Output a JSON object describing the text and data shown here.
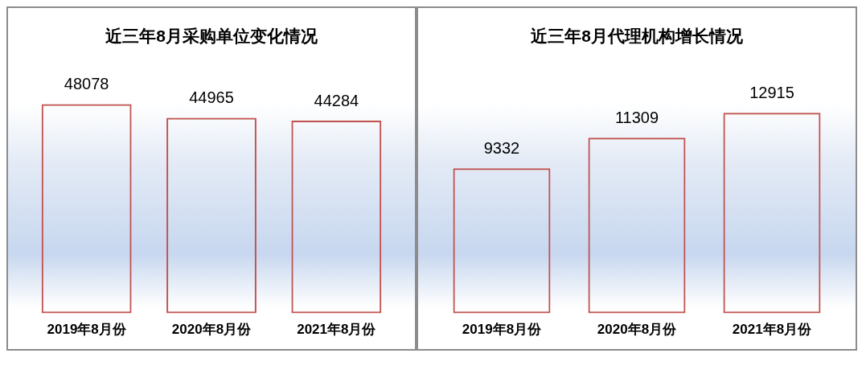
{
  "chart_data": [
    {
      "type": "bar",
      "title": "近三年8月采购单位变化情况",
      "categories": [
        "2019年8月份",
        "2020年8月份",
        "2021年8月份"
      ],
      "values": [
        48078,
        44965,
        44284
      ],
      "color": "#c0504d",
      "data_labels": true,
      "tick_labels": "x"
    },
    {
      "type": "bar",
      "title": "近三年8月代理机构增长情况",
      "categories": [
        "2019年8月份",
        "2020年8月份",
        "2021年8月份"
      ],
      "values": [
        9332,
        11309,
        12915
      ],
      "color": "#c0504d",
      "data_labels": true,
      "tick_labels": "x"
    }
  ]
}
